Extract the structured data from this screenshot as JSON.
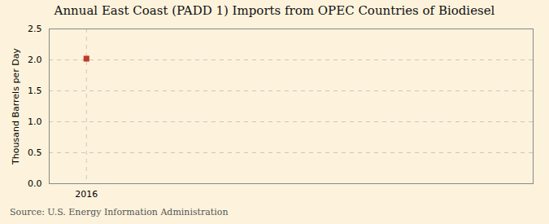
{
  "chart_data": {
    "type": "scatter",
    "title": "Annual East Coast (PADD 1) Imports from OPEC Countries of Biodiesel",
    "ylabel": "Thousand Barrels per Day",
    "source": "Source: U.S. Energy Information Administration",
    "x": [
      2016
    ],
    "values": [
      2.02
    ],
    "color": "#c0392b",
    "marker": "square",
    "xlim": [
      2015.5,
      2022.0
    ],
    "xticks": [
      2016
    ],
    "ylim": [
      0,
      2.5
    ],
    "yticks": [
      {
        "value": 0,
        "label": "0.0"
      },
      0.5,
      {
        "value": 1,
        "label": "1.0"
      },
      1.5,
      {
        "value": 2,
        "label": "2.0"
      },
      2.5
    ],
    "grid": true
  }
}
